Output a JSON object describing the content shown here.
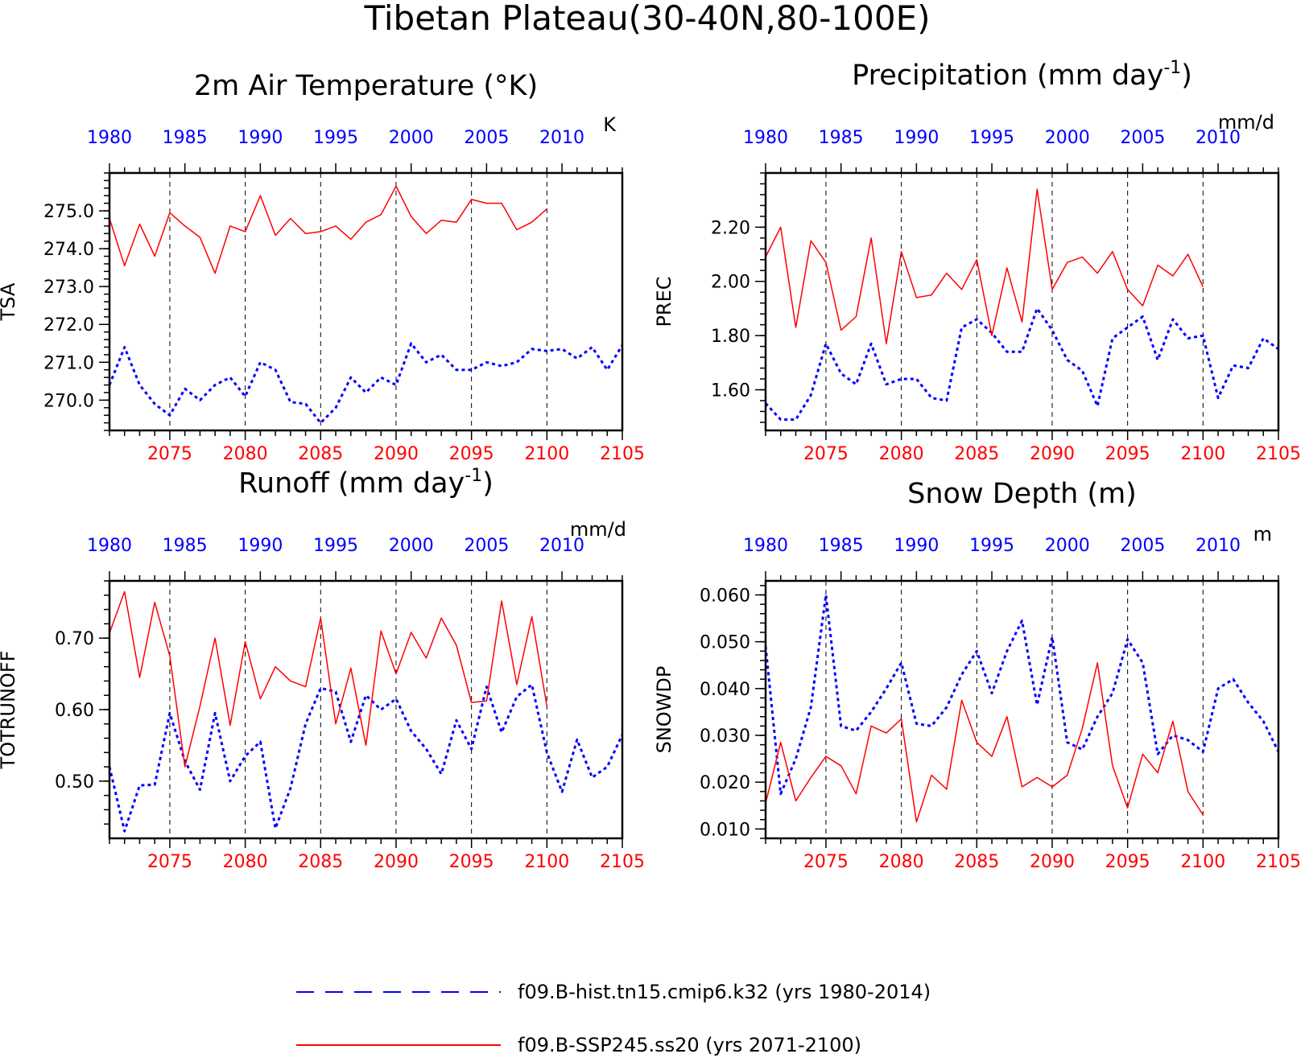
{
  "figure_title": "Tibetan Plateau(30-40N,80-100E)",
  "colors": {
    "hist": "#0000ff",
    "ssp": "#ff0000",
    "axis": "#000000"
  },
  "legend": [
    {
      "series": "hist",
      "label": "f09.B-hist.tn15.cmip6.k32 (yrs 1980-2014)",
      "style": "dashed"
    },
    {
      "series": "ssp",
      "label": "f09.B-SSP245.ss20 (yrs 2071-2100)",
      "style": "solid"
    }
  ],
  "chart_data": [
    {
      "type": "line",
      "title": "2m Air Temperature (°K)",
      "ylabel": "TSA",
      "units": "K",
      "ylim": [
        269.2,
        276.0
      ],
      "yticks": [
        "270.0",
        "271.0",
        "272.0",
        "273.0",
        "274.0",
        "275.0"
      ],
      "bottom_axis": {
        "range": [
          2071,
          2105
        ],
        "ticks": [
          2075,
          2080,
          2085,
          2090,
          2095,
          2100,
          2105
        ]
      },
      "top_axis": {
        "range": [
          1980,
          2014
        ],
        "ticks": [
          1980,
          1985,
          1990,
          1995,
          2000,
          2005,
          2010
        ]
      },
      "series": [
        {
          "key": "hist",
          "years_start": 1980,
          "values": [
            270.4,
            271.4,
            270.4,
            269.9,
            269.6,
            270.3,
            270.0,
            270.4,
            270.6,
            270.1,
            271.0,
            270.8,
            269.95,
            269.9,
            269.4,
            269.8,
            270.6,
            270.2,
            270.6,
            270.4,
            271.5,
            271.0,
            271.2,
            270.8,
            270.8,
            271.0,
            270.9,
            271.0,
            271.35,
            271.3,
            271.35,
            271.1,
            271.4,
            270.8,
            271.45
          ]
        },
        {
          "key": "ssp",
          "years_start": 2071,
          "values": [
            274.8,
            273.55,
            274.65,
            273.8,
            274.95,
            274.6,
            274.3,
            273.35,
            274.6,
            274.45,
            275.4,
            274.35,
            274.8,
            274.4,
            274.45,
            274.6,
            274.25,
            274.7,
            274.9,
            275.65,
            274.85,
            274.4,
            274.75,
            274.7,
            275.3,
            275.2,
            275.2,
            274.5,
            274.7,
            275.05
          ]
        }
      ]
    },
    {
      "type": "line",
      "title": "Precipitation (mm day",
      "title_sup": "-1",
      "title_end": ")",
      "ylabel": "PREC",
      "units": "mm/d",
      "ylim": [
        1.45,
        2.4
      ],
      "yticks": [
        "1.60",
        "1.80",
        "2.00",
        "2.20"
      ],
      "bottom_axis": {
        "range": [
          2071,
          2105
        ],
        "ticks": [
          2075,
          2080,
          2085,
          2090,
          2095,
          2100,
          2105
        ]
      },
      "top_axis": {
        "range": [
          1980,
          2014
        ],
        "ticks": [
          1980,
          1985,
          1990,
          1995,
          2000,
          2005,
          2010
        ]
      },
      "series": [
        {
          "key": "hist",
          "years_start": 1980,
          "values": [
            1.55,
            1.49,
            1.49,
            1.58,
            1.77,
            1.66,
            1.62,
            1.77,
            1.62,
            1.64,
            1.64,
            1.57,
            1.56,
            1.83,
            1.86,
            1.81,
            1.74,
            1.74,
            1.9,
            1.82,
            1.71,
            1.67,
            1.54,
            1.79,
            1.83,
            1.87,
            1.71,
            1.86,
            1.79,
            1.8,
            1.57,
            1.69,
            1.68,
            1.79,
            1.75
          ]
        },
        {
          "key": "ssp",
          "years_start": 2071,
          "values": [
            2.09,
            2.2,
            1.83,
            2.15,
            2.07,
            1.82,
            1.87,
            2.16,
            1.77,
            2.11,
            1.94,
            1.95,
            2.03,
            1.97,
            2.08,
            1.8,
            2.05,
            1.85,
            2.34,
            1.97,
            2.07,
            2.09,
            2.03,
            2.11,
            1.97,
            1.91,
            2.06,
            2.02,
            2.1,
            1.98
          ]
        }
      ]
    },
    {
      "type": "line",
      "title": "Runoff (mm day",
      "title_sup": "-1",
      "title_end": ")",
      "ylabel": "TOTRUNOFF",
      "units": "mm/d",
      "ylim": [
        0.42,
        0.78
      ],
      "yticks": [
        "0.50",
        "0.60",
        "0.70"
      ],
      "bottom_axis": {
        "range": [
          2071,
          2105
        ],
        "ticks": [
          2075,
          2080,
          2085,
          2090,
          2095,
          2100,
          2105
        ]
      },
      "top_axis": {
        "range": [
          1980,
          2014
        ],
        "ticks": [
          1980,
          1985,
          1990,
          1995,
          2000,
          2005,
          2010
        ]
      },
      "series": [
        {
          "key": "hist",
          "years_start": 1980,
          "values": [
            0.52,
            0.43,
            0.494,
            0.495,
            0.595,
            0.528,
            0.488,
            0.595,
            0.5,
            0.535,
            0.555,
            0.434,
            0.49,
            0.58,
            0.63,
            0.625,
            0.555,
            0.62,
            0.6,
            0.615,
            0.57,
            0.545,
            0.51,
            0.585,
            0.545,
            0.632,
            0.568,
            0.618,
            0.635,
            0.54,
            0.485,
            0.558,
            0.505,
            0.52,
            0.565
          ]
        },
        {
          "key": "ssp",
          "years_start": 2071,
          "values": [
            0.707,
            0.765,
            0.645,
            0.75,
            0.675,
            0.52,
            0.605,
            0.7,
            0.578,
            0.695,
            0.615,
            0.66,
            0.64,
            0.632,
            0.728,
            0.58,
            0.658,
            0.55,
            0.71,
            0.65,
            0.708,
            0.672,
            0.728,
            0.69,
            0.61,
            0.612,
            0.752,
            0.635,
            0.73,
            0.605
          ]
        }
      ]
    },
    {
      "type": "line",
      "title": "Snow Depth (m)",
      "ylabel": "SNOWDP",
      "units": "m",
      "ylim": [
        0.008,
        0.063
      ],
      "yticks": [
        "0.010",
        "0.020",
        "0.030",
        "0.040",
        "0.050",
        "0.060"
      ],
      "bottom_axis": {
        "range": [
          2071,
          2105
        ],
        "ticks": [
          2075,
          2080,
          2085,
          2090,
          2095,
          2100,
          2105
        ]
      },
      "top_axis": {
        "range": [
          1980,
          2014
        ],
        "ticks": [
          1980,
          1985,
          1990,
          1995,
          2000,
          2005,
          2010
        ]
      },
      "series": [
        {
          "key": "hist",
          "years_start": 1980,
          "values": [
            0.049,
            0.0175,
            0.025,
            0.036,
            0.06,
            0.032,
            0.031,
            0.035,
            0.04,
            0.0455,
            0.0325,
            0.032,
            0.036,
            0.043,
            0.048,
            0.039,
            0.048,
            0.0545,
            0.0365,
            0.051,
            0.0285,
            0.027,
            0.034,
            0.039,
            0.0505,
            0.0455,
            0.026,
            0.03,
            0.029,
            0.0265,
            0.04,
            0.042,
            0.037,
            0.033,
            0.0265
          ]
        },
        {
          "key": "ssp",
          "years_start": 2071,
          "values": [
            0.0155,
            0.0285,
            0.016,
            0.021,
            0.0255,
            0.0235,
            0.0175,
            0.032,
            0.0305,
            0.0335,
            0.0115,
            0.0215,
            0.0185,
            0.0375,
            0.0285,
            0.0255,
            0.034,
            0.019,
            0.021,
            0.019,
            0.0215,
            0.0315,
            0.0455,
            0.0235,
            0.0145,
            0.026,
            0.022,
            0.033,
            0.018,
            0.013
          ]
        }
      ]
    }
  ]
}
